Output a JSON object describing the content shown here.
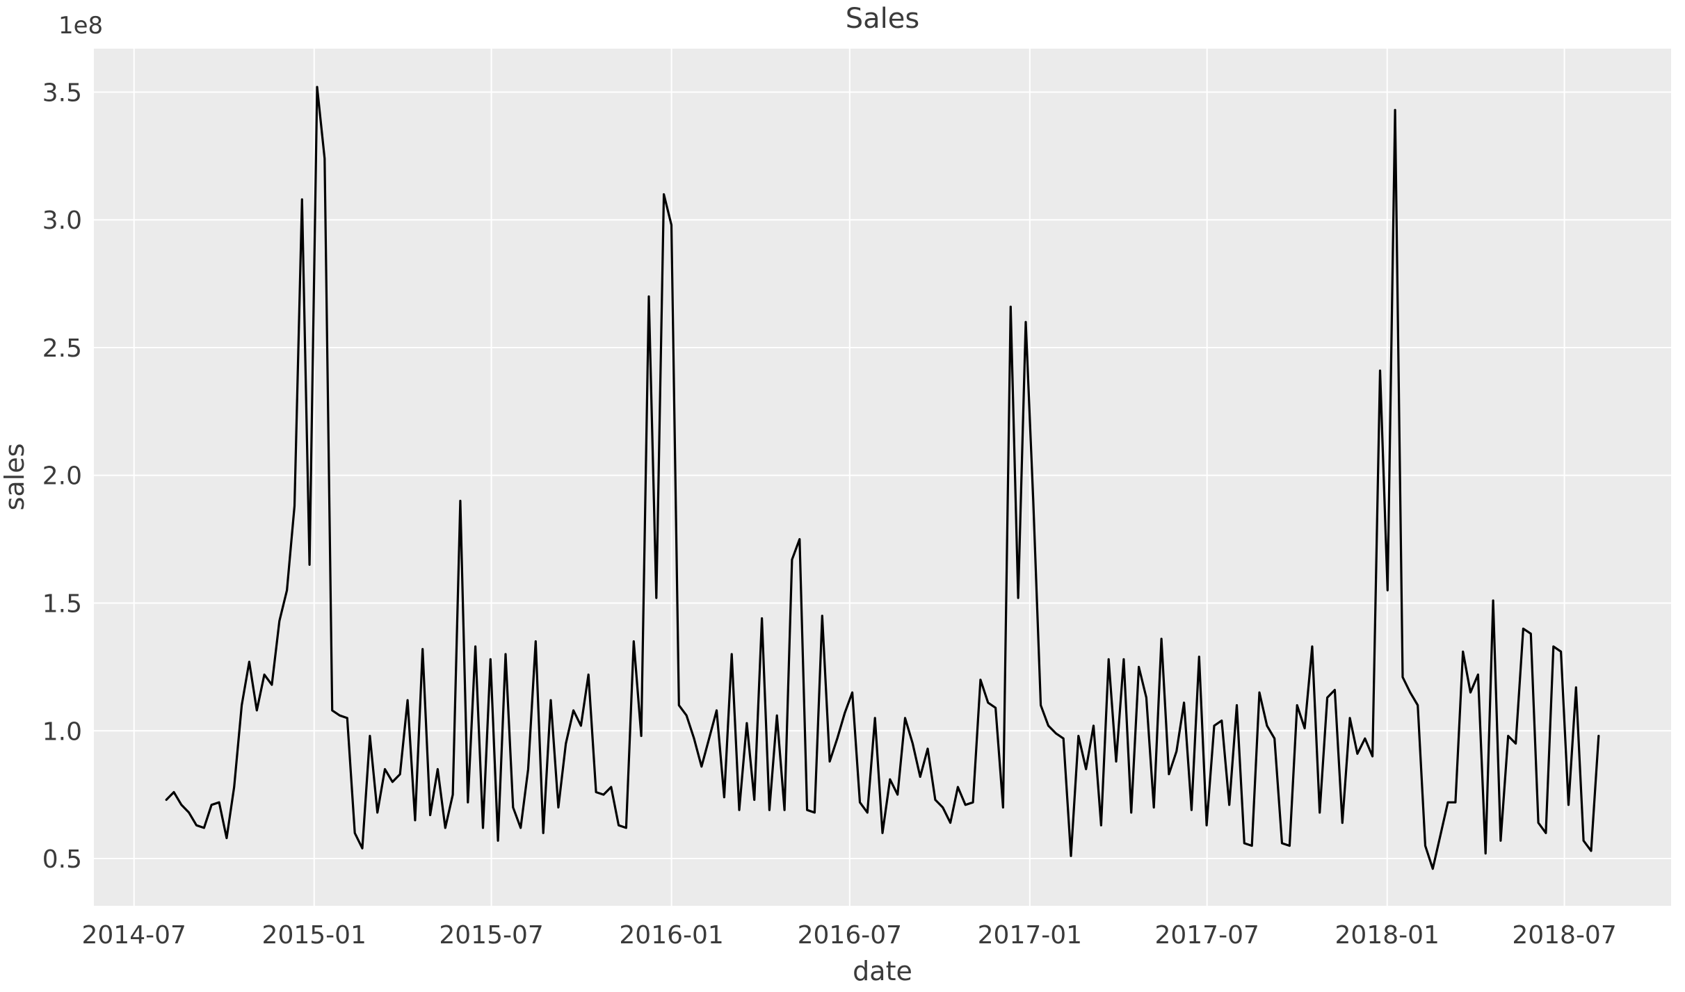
{
  "chart_data": {
    "type": "line",
    "title": "Sales",
    "xlabel": "date",
    "ylabel": "sales",
    "y_offset_label": "1e8",
    "legend": "none",
    "grid": "on",
    "style": {
      "plot_bg": "#ebebeb",
      "grid_color": "#ffffff",
      "line_color": "#000000",
      "text_color": "#3b3b3b",
      "line_width": 3.2
    },
    "x_tick_labels": [
      "2014-07",
      "2015-01",
      "2015-07",
      "2016-01",
      "2016-07",
      "2017-01",
      "2017-07",
      "2018-01",
      "2018-07"
    ],
    "x_tick_dates": [
      "2014-07-01",
      "2015-01-01",
      "2015-07-01",
      "2016-01-01",
      "2016-07-01",
      "2017-01-01",
      "2017-07-01",
      "2018-01-01",
      "2018-07-01"
    ],
    "y_tick_labels": [
      "0.5",
      "1.0",
      "1.5",
      "2.0",
      "2.5",
      "3.0",
      "3.5"
    ],
    "y_ticks": [
      0.5,
      1.0,
      1.5,
      2.0,
      2.5,
      3.0,
      3.5
    ],
    "x_domain": [
      "2014-05-21",
      "2018-10-18"
    ],
    "y_domain": [
      0.315,
      3.67
    ],
    "y_units": "1e8",
    "series": [
      {
        "name": "sales",
        "x_start": "2014-08-03",
        "x_end": "2018-08-05",
        "x_spacing": "evenly spaced, approx weekly (7.7 days)",
        "values": [
          0.73,
          0.76,
          0.71,
          0.68,
          0.63,
          0.62,
          0.71,
          0.72,
          0.58,
          0.78,
          1.1,
          1.27,
          1.08,
          1.22,
          1.18,
          1.43,
          1.55,
          1.88,
          3.08,
          1.65,
          3.52,
          3.24,
          1.08,
          1.06,
          1.05,
          0.6,
          0.54,
          0.98,
          0.68,
          0.85,
          0.8,
          0.83,
          1.12,
          0.65,
          1.32,
          0.67,
          0.85,
          0.62,
          0.75,
          1.9,
          0.72,
          1.33,
          0.62,
          1.28,
          0.57,
          1.3,
          0.7,
          0.62,
          0.85,
          1.35,
          0.6,
          1.12,
          0.7,
          0.95,
          1.08,
          1.02,
          1.22,
          0.76,
          0.75,
          0.78,
          0.63,
          0.62,
          1.35,
          0.98,
          2.7,
          1.52,
          3.1,
          2.98,
          1.1,
          1.06,
          0.97,
          0.86,
          0.97,
          1.08,
          0.74,
          1.3,
          0.69,
          1.03,
          0.73,
          1.44,
          0.69,
          1.06,
          0.69,
          1.67,
          1.75,
          0.69,
          0.68,
          1.45,
          0.88,
          0.97,
          1.07,
          1.15,
          0.72,
          0.68,
          1.05,
          0.6,
          0.81,
          0.75,
          1.05,
          0.95,
          0.82,
          0.93,
          0.73,
          0.7,
          0.64,
          0.78,
          0.71,
          0.72,
          1.2,
          1.11,
          1.09,
          0.7,
          2.66,
          1.52,
          2.6,
          1.9,
          1.1,
          1.02,
          0.99,
          0.97,
          0.51,
          0.98,
          0.85,
          1.02,
          0.63,
          1.28,
          0.88,
          1.28,
          0.68,
          1.25,
          1.13,
          0.7,
          1.36,
          0.83,
          0.92,
          1.11,
          0.69,
          1.29,
          0.63,
          1.02,
          1.04,
          0.71,
          1.1,
          0.56,
          0.55,
          1.15,
          1.02,
          0.97,
          0.56,
          0.55,
          1.1,
          1.01,
          1.33,
          0.68,
          1.13,
          1.16,
          0.64,
          1.05,
          0.91,
          0.97,
          0.9,
          2.41,
          1.55,
          3.43,
          1.21,
          1.15,
          1.1,
          0.55,
          0.46,
          0.59,
          0.72,
          0.72,
          1.31,
          1.15,
          1.22,
          0.52,
          1.51,
          0.57,
          0.98,
          0.95,
          1.4,
          1.38,
          0.64,
          0.6,
          1.33,
          1.31,
          0.71,
          1.17,
          0.57,
          0.53,
          0.98
        ]
      }
    ]
  }
}
